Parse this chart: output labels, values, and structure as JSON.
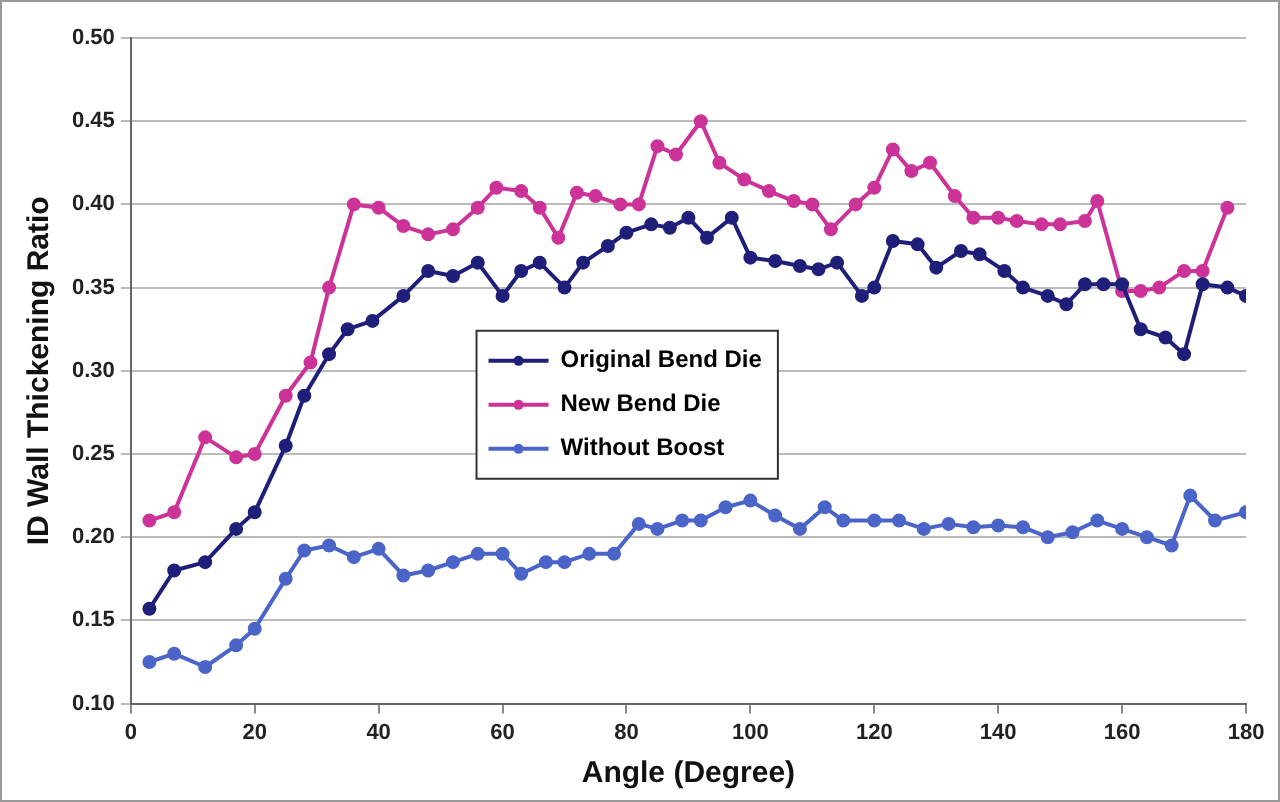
{
  "chart_data": {
    "type": "line",
    "xlabel": "Angle (Degree)",
    "ylabel": "ID Wall Thickening Ratio",
    "xlim": [
      0,
      180
    ],
    "xticks": [
      0,
      20,
      40,
      60,
      80,
      100,
      120,
      140,
      160,
      180
    ],
    "ylim": [
      0.1,
      0.5
    ],
    "yticks": [
      {
        "value": 0.1,
        "label": "0.10"
      },
      {
        "value": 0.15,
        "label": "0.15"
      },
      {
        "value": 0.2,
        "label": "0.20"
      },
      {
        "value": 0.25,
        "label": "0.25"
      },
      {
        "value": 0.3,
        "label": "0.30"
      },
      {
        "value": 0.35,
        "label": "0.35"
      },
      {
        "value": 0.4,
        "label": "0.40"
      },
      {
        "value": 0.45,
        "label": "0.45"
      },
      {
        "value": 0.5,
        "label": "0.50"
      }
    ],
    "grid": "y",
    "legend": "center",
    "marker": "circle",
    "line_style": "solid",
    "series": [
      {
        "name": "Original Bend Die",
        "color": "#1f1f7a",
        "x": [
          3,
          7,
          12,
          17,
          20,
          25,
          28,
          32,
          35,
          39,
          44,
          48,
          52,
          56,
          60,
          63,
          66,
          70,
          73,
          77,
          80,
          84,
          87,
          90,
          93,
          97,
          100,
          104,
          108,
          111,
          114,
          118,
          120,
          123,
          127,
          130,
          134,
          137,
          141,
          144,
          148,
          151,
          154,
          157,
          160,
          163,
          167,
          170,
          173,
          177,
          180
        ],
        "values": [
          0.157,
          0.18,
          0.185,
          0.205,
          0.215,
          0.255,
          0.285,
          0.31,
          0.325,
          0.33,
          0.345,
          0.36,
          0.357,
          0.365,
          0.345,
          0.36,
          0.365,
          0.35,
          0.365,
          0.375,
          0.383,
          0.388,
          0.386,
          0.392,
          0.38,
          0.392,
          0.368,
          0.366,
          0.363,
          0.361,
          0.365,
          0.345,
          0.35,
          0.378,
          0.376,
          0.362,
          0.372,
          0.37,
          0.36,
          0.35,
          0.345,
          0.34,
          0.352,
          0.352,
          0.352,
          0.325,
          0.32,
          0.31,
          0.352,
          0.35,
          0.345
        ]
      },
      {
        "name": "New Bend Die",
        "color": "#cc3399",
        "x": [
          3,
          7,
          12,
          17,
          20,
          25,
          29,
          32,
          36,
          40,
          44,
          48,
          52,
          56,
          59,
          63,
          66,
          69,
          72,
          75,
          79,
          82,
          85,
          88,
          92,
          95,
          99,
          103,
          107,
          110,
          113,
          117,
          120,
          123,
          126,
          129,
          133,
          136,
          140,
          143,
          147,
          150,
          154,
          156,
          160,
          163,
          166,
          170,
          173,
          177
        ],
        "values": [
          0.21,
          0.215,
          0.26,
          0.248,
          0.25,
          0.285,
          0.305,
          0.35,
          0.4,
          0.398,
          0.387,
          0.382,
          0.385,
          0.398,
          0.41,
          0.408,
          0.398,
          0.38,
          0.407,
          0.405,
          0.4,
          0.4,
          0.435,
          0.43,
          0.45,
          0.425,
          0.415,
          0.408,
          0.402,
          0.4,
          0.385,
          0.4,
          0.41,
          0.433,
          0.42,
          0.425,
          0.405,
          0.392,
          0.392,
          0.39,
          0.388,
          0.388,
          0.39,
          0.402,
          0.348,
          0.348,
          0.35,
          0.36,
          0.36,
          0.398
        ]
      },
      {
        "name": "Without Boost",
        "color": "#4a64c8",
        "x": [
          3,
          7,
          12,
          17,
          20,
          25,
          28,
          32,
          36,
          40,
          44,
          48,
          52,
          56,
          60,
          63,
          67,
          70,
          74,
          78,
          82,
          85,
          89,
          92,
          96,
          100,
          104,
          108,
          112,
          115,
          120,
          124,
          128,
          132,
          136,
          140,
          144,
          148,
          152,
          156,
          160,
          164,
          168,
          171,
          175,
          180
        ],
        "values": [
          0.125,
          0.13,
          0.122,
          0.135,
          0.145,
          0.175,
          0.192,
          0.195,
          0.188,
          0.193,
          0.177,
          0.18,
          0.185,
          0.19,
          0.19,
          0.178,
          0.185,
          0.185,
          0.19,
          0.19,
          0.208,
          0.205,
          0.21,
          0.21,
          0.218,
          0.222,
          0.213,
          0.205,
          0.218,
          0.21,
          0.21,
          0.21,
          0.205,
          0.208,
          0.206,
          0.207,
          0.206,
          0.2,
          0.203,
          0.21,
          0.205,
          0.2,
          0.195,
          0.225,
          0.21,
          0.215
        ]
      }
    ]
  }
}
